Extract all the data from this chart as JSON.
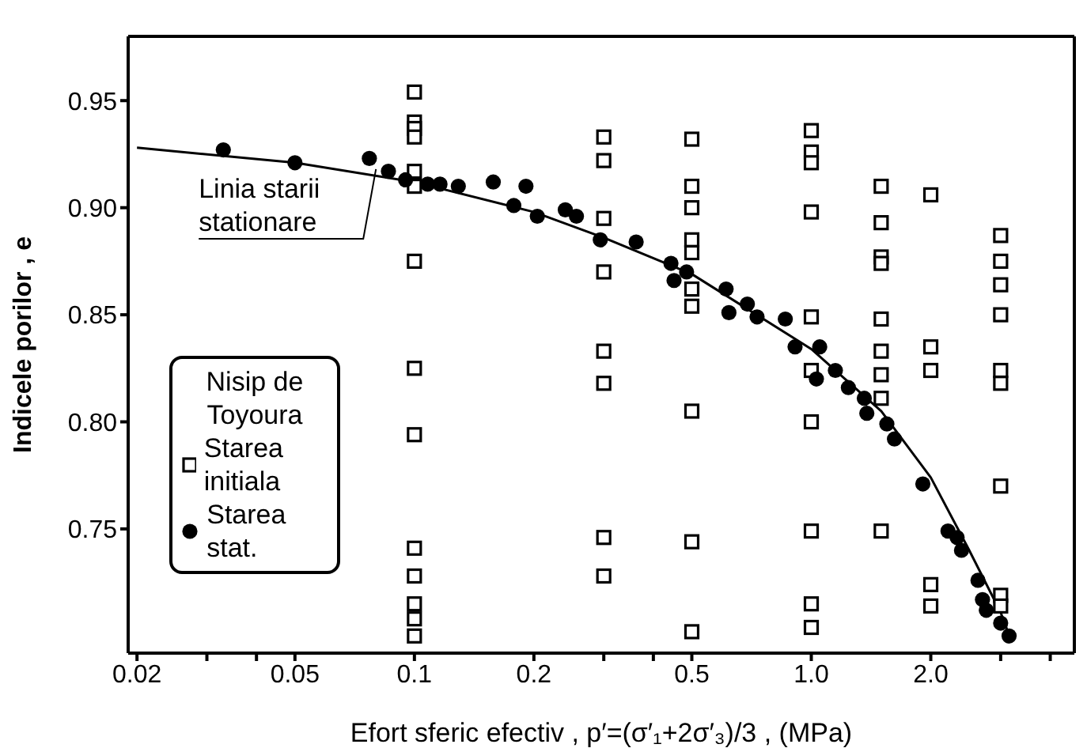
{
  "chart_data": {
    "type": "scatter",
    "xlabel": "Efort sferic efectiv ,  p′=(σ′₁+2σ′₃)/3 , (MPa)",
    "ylabel": "Indicele porilor ,  e",
    "legend_title": "Nisip de Toyoura",
    "legend": "bottom left",
    "log": "x",
    "xlim": [
      0.019,
      4.6
    ],
    "xticks": [
      0.02,
      {
        "value": 0.03,
        "label": null
      },
      {
        "value": 0.04,
        "label": null
      },
      0.05,
      0.1,
      0.2,
      {
        "value": 0.3,
        "label": null
      },
      {
        "value": 0.4,
        "label": null
      },
      0.5,
      {
        "value": 1,
        "label": "1.0"
      },
      {
        "value": 2,
        "label": "2.0"
      },
      {
        "value": 3,
        "label": null
      },
      {
        "value": 4,
        "label": null
      }
    ],
    "ylim": [
      0.692,
      0.98
    ],
    "yticks": [
      0.75,
      {
        "value": 0.8,
        "label": "0.80"
      },
      0.85,
      {
        "value": 0.9,
        "label": "0.90"
      },
      0.95
    ],
    "annotations": [
      {
        "text": "Linia starii stationare",
        "x": 0.08,
        "y": 0.918
      }
    ],
    "series": [
      {
        "name": "Starea initiala",
        "marker": "square",
        "color": "#000000",
        "x": [
          0.1,
          0.1,
          0.1,
          0.1,
          0.1,
          0.1,
          0.1,
          0.1,
          0.1,
          0.1,
          0.1,
          0.1,
          0.1,
          0.1,
          0.3,
          0.3,
          0.3,
          0.3,
          0.3,
          0.3,
          0.3,
          0.3,
          0.5,
          0.5,
          0.5,
          0.5,
          0.5,
          0.5,
          0.5,
          0.5,
          0.5,
          0.5,
          1,
          1,
          1,
          1,
          1,
          1,
          1,
          1,
          1,
          1,
          1.5,
          1.5,
          1.5,
          1.5,
          1.5,
          1.5,
          1.5,
          1.5,
          1.5,
          2,
          2,
          2,
          2,
          2,
          3,
          3,
          3,
          3,
          3,
          3,
          3,
          3,
          3
        ],
        "values": [
          0.954,
          0.94,
          0.937,
          0.933,
          0.917,
          0.91,
          0.875,
          0.825,
          0.794,
          0.741,
          0.728,
          0.715,
          0.708,
          0.7,
          0.933,
          0.922,
          0.895,
          0.87,
          0.833,
          0.818,
          0.746,
          0.728,
          0.932,
          0.91,
          0.9,
          0.885,
          0.879,
          0.862,
          0.854,
          0.805,
          0.744,
          0.702,
          0.936,
          0.926,
          0.921,
          0.898,
          0.849,
          0.824,
          0.8,
          0.749,
          0.715,
          0.704,
          0.91,
          0.893,
          0.877,
          0.874,
          0.848,
          0.833,
          0.822,
          0.811,
          0.749,
          0.906,
          0.835,
          0.824,
          0.724,
          0.714,
          0.887,
          0.875,
          0.864,
          0.85,
          0.824,
          0.818,
          0.77,
          0.719,
          0.714
        ]
      },
      {
        "name": "Starea stat.",
        "marker": "circle",
        "color": "#000000",
        "x": [
          0.033,
          0.05,
          0.077,
          0.086,
          0.095,
          0.108,
          0.116,
          0.129,
          0.158,
          0.178,
          0.191,
          0.204,
          0.24,
          0.256,
          0.294,
          0.362,
          0.443,
          0.451,
          0.485,
          0.61,
          0.62,
          0.69,
          0.73,
          0.86,
          0.91,
          1.05,
          1.03,
          1.15,
          1.24,
          1.36,
          1.38,
          1.55,
          1.62,
          1.91,
          2.21,
          2.33,
          2.39,
          2.63,
          2.7,
          2.76,
          3.0,
          3.15
        ],
        "values": [
          0.927,
          0.921,
          0.923,
          0.917,
          0.913,
          0.911,
          0.911,
          0.91,
          0.912,
          0.901,
          0.91,
          0.896,
          0.899,
          0.896,
          0.885,
          0.884,
          0.874,
          0.866,
          0.87,
          0.862,
          0.851,
          0.855,
          0.849,
          0.848,
          0.835,
          0.835,
          0.82,
          0.824,
          0.816,
          0.811,
          0.804,
          0.799,
          0.792,
          0.771,
          0.749,
          0.746,
          0.74,
          0.726,
          0.717,
          0.712,
          0.706,
          0.7
        ]
      },
      {
        "type": "line",
        "marker": "none",
        "color": "#000000",
        "x": [
          0.02,
          0.05,
          0.1,
          0.2,
          0.3,
          0.5,
          1,
          1.5,
          2,
          2.5,
          3,
          3.2
        ],
        "values": [
          0.928,
          0.921,
          0.912,
          0.898,
          0.886,
          0.869,
          0.834,
          0.805,
          0.774,
          0.74,
          0.711,
          0.697
        ]
      }
    ]
  }
}
